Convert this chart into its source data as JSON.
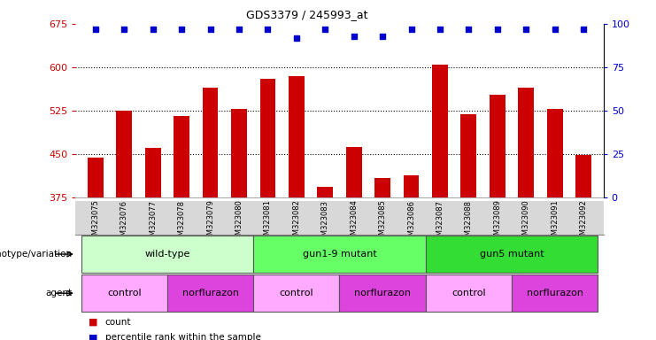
{
  "title": "GDS3379 / 245993_at",
  "samples": [
    "GSM323075",
    "GSM323076",
    "GSM323077",
    "GSM323078",
    "GSM323079",
    "GSM323080",
    "GSM323081",
    "GSM323082",
    "GSM323083",
    "GSM323084",
    "GSM323085",
    "GSM323086",
    "GSM323087",
    "GSM323088",
    "GSM323089",
    "GSM323090",
    "GSM323091",
    "GSM323092"
  ],
  "counts": [
    443,
    525,
    460,
    515,
    565,
    528,
    580,
    585,
    393,
    462,
    408,
    413,
    605,
    518,
    553,
    565,
    528,
    448
  ],
  "percentile_ranks": [
    97,
    97,
    97,
    97,
    97,
    97,
    97,
    92,
    97,
    93,
    93,
    97,
    97,
    97,
    97,
    97,
    97,
    97
  ],
  "ylim": [
    375,
    675
  ],
  "yticks": [
    375,
    450,
    525,
    600,
    675
  ],
  "right_yticks": [
    0,
    25,
    50,
    75,
    100
  ],
  "bar_color": "#cc0000",
  "dot_color": "#0000cc",
  "grid_color": "#000000",
  "genotype_groups": [
    {
      "label": "wild-type",
      "start": 0,
      "end": 5,
      "color": "#ccffcc"
    },
    {
      "label": "gun1-9 mutant",
      "start": 6,
      "end": 11,
      "color": "#66ff66"
    },
    {
      "label": "gun5 mutant",
      "start": 12,
      "end": 17,
      "color": "#33dd33"
    }
  ],
  "agent_groups": [
    {
      "label": "control",
      "start": 0,
      "end": 2,
      "color": "#ffaaff"
    },
    {
      "label": "norflurazon",
      "start": 3,
      "end": 5,
      "color": "#dd44dd"
    },
    {
      "label": "control",
      "start": 6,
      "end": 8,
      "color": "#ffaaff"
    },
    {
      "label": "norflurazon",
      "start": 9,
      "end": 11,
      "color": "#dd44dd"
    },
    {
      "label": "control",
      "start": 12,
      "end": 14,
      "color": "#ffaaff"
    },
    {
      "label": "norflurazon",
      "start": 15,
      "end": 17,
      "color": "#dd44dd"
    }
  ],
  "legend_count_color": "#cc0000",
  "legend_rank_color": "#0000cc",
  "figsize": [
    7.41,
    3.84
  ],
  "dpi": 100
}
